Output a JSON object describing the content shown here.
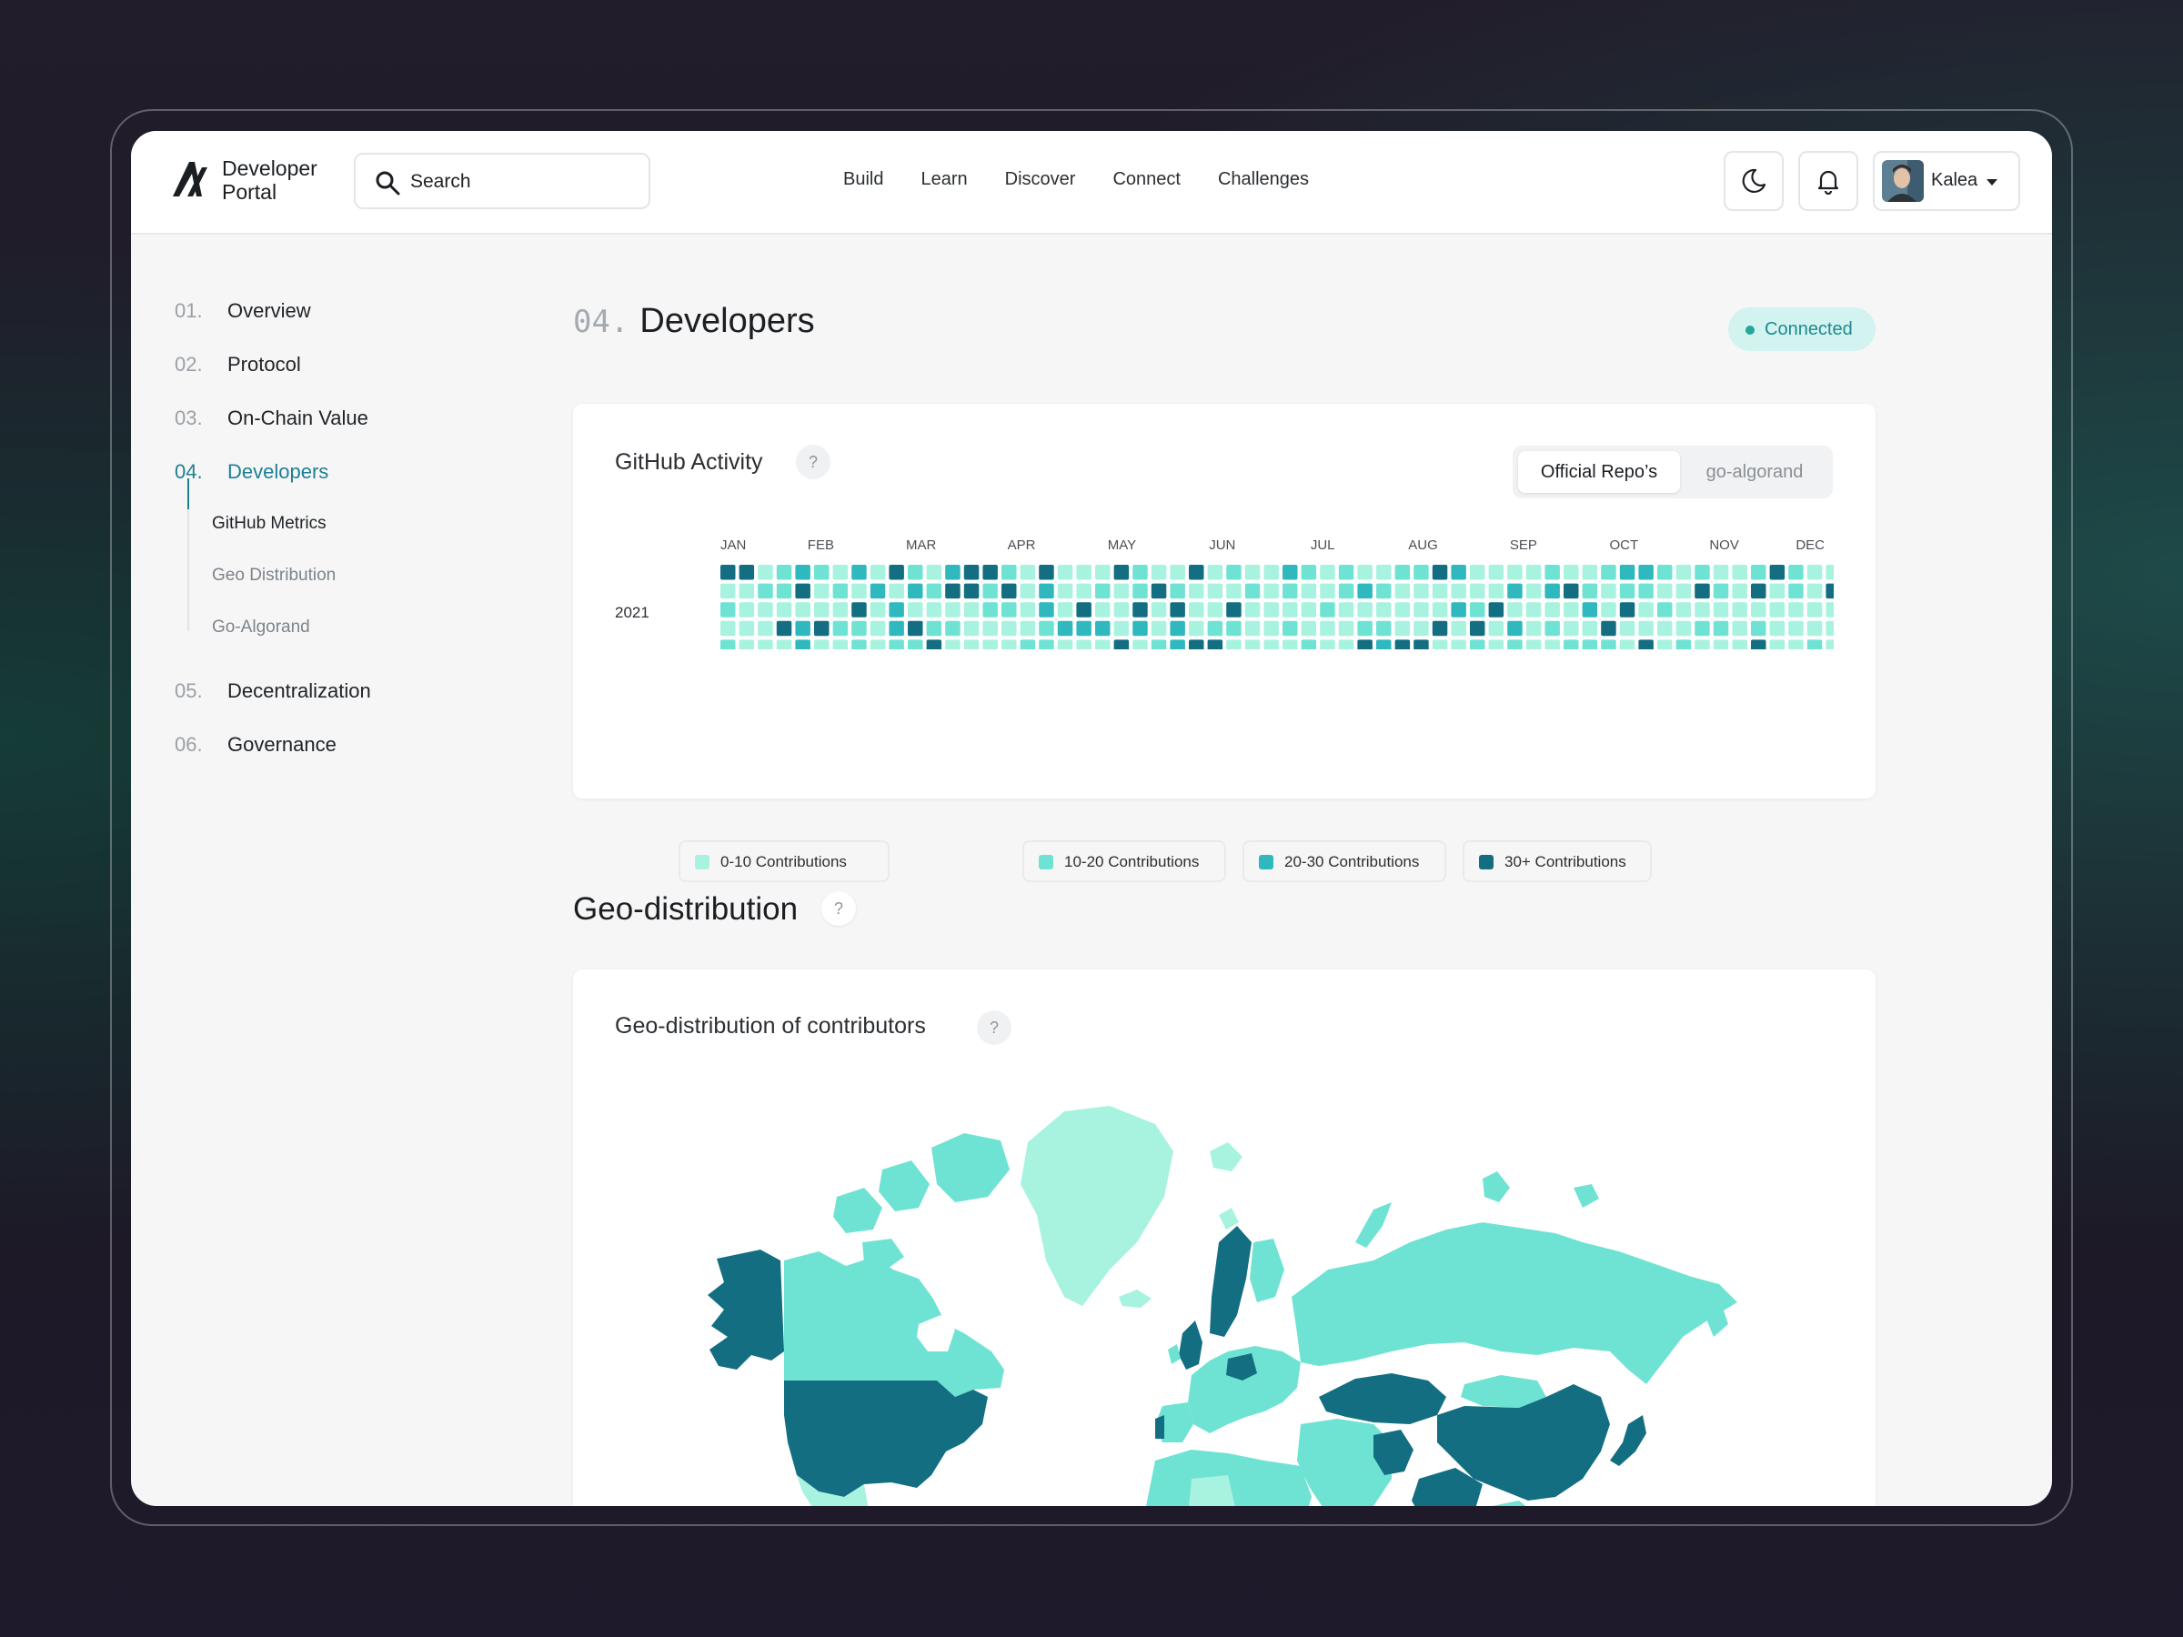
{
  "app": {
    "brand_line1": "Developer",
    "brand_line2": "Portal"
  },
  "search": {
    "label": "Search"
  },
  "nav": {
    "items": [
      "Build",
      "Learn",
      "Discover",
      "Connect",
      "Challenges"
    ]
  },
  "user": {
    "name": "Kalea"
  },
  "sidebar": {
    "items": [
      {
        "num": "01.",
        "label": "Overview"
      },
      {
        "num": "02.",
        "label": "Protocol"
      },
      {
        "num": "03.",
        "label": "On-Chain Value"
      },
      {
        "num": "04.",
        "label": "Developers"
      },
      {
        "num": "05.",
        "label": "Decentralization"
      },
      {
        "num": "06.",
        "label": "Governance"
      }
    ],
    "active_index": 3,
    "subitems": [
      "GitHub Metrics",
      "Geo Distribution",
      "Go-Algorand"
    ],
    "active_subitem": 0
  },
  "page": {
    "num": "04.",
    "title": "Developers",
    "status": "Connected"
  },
  "github": {
    "title": "GitHub Activity",
    "help": "?",
    "toggle": {
      "options": [
        "Official Repo’s",
        "go-algorand"
      ],
      "selected": 0
    },
    "year": "2021",
    "months": [
      "JAN",
      "FEB",
      "MAR",
      "APR",
      "MAY",
      "JUN",
      "JUL",
      "AUG",
      "SEP",
      "OCT",
      "NOV",
      "DEC"
    ],
    "legend": [
      {
        "label": "0-10 Contributions",
        "color": "#a8f2e0"
      },
      {
        "label": "10-20 Contributions",
        "color": "#6ee3d4"
      },
      {
        "label": "20-30 Contributions",
        "color": "#2fb9bf"
      },
      {
        "label": "30+ Contributions",
        "color": "#136e82"
      }
    ]
  },
  "geo": {
    "section_title": "Geo-distribution",
    "help": "?",
    "card_title": "Geo-distribution of contributors"
  },
  "colors": {
    "accent": "#1e7f94",
    "badge_bg": "#d3f3f0"
  }
}
